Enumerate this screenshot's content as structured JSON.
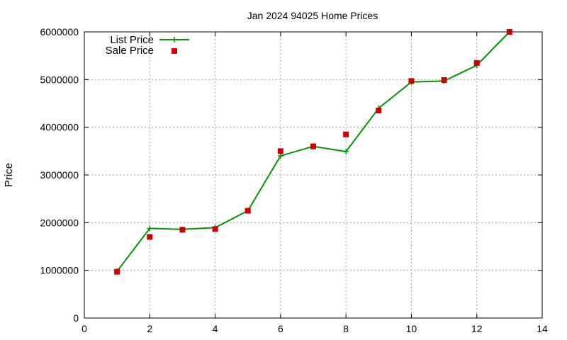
{
  "chart_data": {
    "type": "line",
    "title": "Jan 2024 94025 Home Prices",
    "xlabel": "",
    "ylabel": "Price",
    "xlim": [
      0,
      14
    ],
    "ylim": [
      0,
      6000000
    ],
    "xticks": [
      0,
      2,
      4,
      6,
      8,
      10,
      12,
      14
    ],
    "yticks": [
      0,
      1000000,
      2000000,
      3000000,
      4000000,
      5000000,
      6000000
    ],
    "grid": true,
    "legend_position": "top-left",
    "series": [
      {
        "name": "List Price",
        "style": "line+cross",
        "color": "#009900",
        "x": [
          1,
          2,
          3,
          4,
          5,
          6,
          7,
          8,
          9,
          10,
          11,
          12,
          13
        ],
        "y": [
          980000,
          1880000,
          1860000,
          1895000,
          2250000,
          3400000,
          3600000,
          3490000,
          4400000,
          4950000,
          4970000,
          5300000,
          6000000
        ]
      },
      {
        "name": "Sale Price",
        "style": "square",
        "color": "#cc0000",
        "x": [
          1,
          2,
          3,
          4,
          5,
          6,
          7,
          8,
          9,
          10,
          11,
          12,
          13
        ],
        "y": [
          970000,
          1700000,
          1850000,
          1865000,
          2250000,
          3500000,
          3600000,
          3850000,
          4350000,
          4970000,
          4990000,
          5350000,
          6000000
        ]
      }
    ]
  }
}
